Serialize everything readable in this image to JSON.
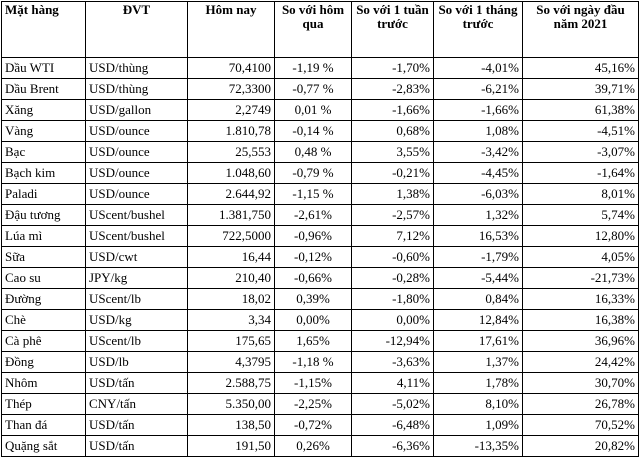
{
  "table": {
    "headers": [
      "Mặt hàng",
      "ĐVT",
      "Hôm nay",
      "So với hôm qua",
      "So với 1 tuần trước",
      "So với 1 tháng trước",
      "So với ngày đầu năm 2021"
    ],
    "rows": [
      [
        "Dầu WTI",
        "USD/thùng",
        "70,4100",
        "-1,19 %",
        "-1,70%",
        "-4,01%",
        "45,16%"
      ],
      [
        "Dầu Brent",
        "USD/thùng",
        "72,3300",
        "-0,77 %",
        "-2,83%",
        "-6,21%",
        "39,71%"
      ],
      [
        "Xăng",
        "USD/gallon",
        "2,2749",
        "0,01 %",
        "-1,66%",
        "-1,66%",
        "61,38%"
      ],
      [
        "Vàng",
        "USD/ounce",
        "1.810,78",
        "-0,14 %",
        "0,68%",
        "1,08%",
        "-4,51%"
      ],
      [
        "Bạc",
        "USD/ounce",
        "25,553",
        "0,48 %",
        "3,55%",
        "-3,42%",
        "-3,07%"
      ],
      [
        "Bạch kim",
        "USD/ounce",
        "1.048,60",
        "-0,79 %",
        "-0,21%",
        "-4,45%",
        "-1,64%"
      ],
      [
        "Paladi",
        "USD/ounce",
        "2.644,92",
        "-1,15 %",
        "1,38%",
        "-6,03%",
        "8,01%"
      ],
      [
        "Đậu tương",
        "UScent/bushel",
        "1.381,750",
        "-2,61%",
        "-2,57%",
        "1,32%",
        "5,74%"
      ],
      [
        "Lúa mì",
        "UScent/bushel",
        "722,5000",
        "-0,96%",
        "7,12%",
        "16,53%",
        "12,80%"
      ],
      [
        "Sữa",
        "USD/cwt",
        "16,44",
        "-0,12%",
        "-0,60%",
        "-1,79%",
        "4,05%"
      ],
      [
        "Cao su",
        "JPY/kg",
        "210,40",
        "-0,66%",
        "-0,28%",
        "-5,44%",
        "-21,73%"
      ],
      [
        "Đường",
        "UScent/lb",
        "18,02",
        "0,39%",
        "-1,80%",
        "0,84%",
        "16,33%"
      ],
      [
        "Chè",
        "USD/kg",
        "3,34",
        "0,00%",
        "0,00%",
        "12,84%",
        "16,38%"
      ],
      [
        "Cà phê",
        "UScent/lb",
        "175,65",
        "1,65%",
        "-12,94%",
        "17,61%",
        "36,96%"
      ],
      [
        "Đồng",
        "USD/lb",
        "4,3795",
        "-1,18 %",
        "-3,63%",
        "1,37%",
        "24,42%"
      ],
      [
        "Nhôm",
        "USD/tấn",
        "2.588,75",
        "-1,15%",
        "4,11%",
        "1,78%",
        "30,70%"
      ],
      [
        "Thép",
        "CNY/tấn",
        "5.350,00",
        "-2,25%",
        "-5,02%",
        "8,10%",
        "26,78%"
      ],
      [
        "Than đá",
        "USD/tấn",
        "138,50",
        "-0,72%",
        "-6,48%",
        "1,09%",
        "70,52%"
      ],
      [
        "Quặng sắt",
        "USD/tấn",
        "191,50",
        "0,26%",
        "-6,36%",
        "-13,35%",
        "20,82%"
      ]
    ]
  }
}
